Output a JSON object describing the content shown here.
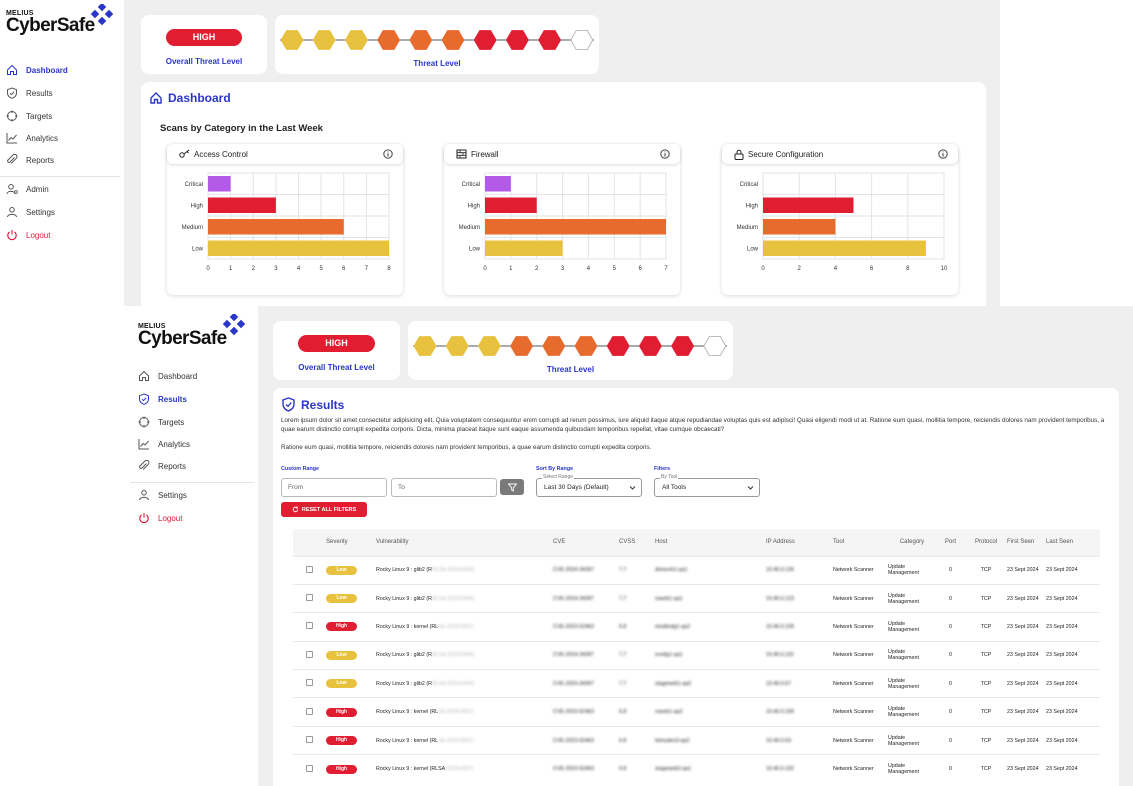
{
  "brand": {
    "top": "MELIUS",
    "name": "CyberSafe"
  },
  "screen1": {
    "nav": [
      {
        "label": "Dashboard",
        "icon": "home-icon",
        "active": true
      },
      {
        "label": "Results",
        "icon": "shield-icon"
      },
      {
        "label": "Targets",
        "icon": "target-icon"
      },
      {
        "label": "Analytics",
        "icon": "analytics-icon"
      },
      {
        "label": "Reports",
        "icon": "paperclip-icon"
      },
      {
        "label": "Admin",
        "icon": "admin-icon"
      },
      {
        "label": "Settings",
        "icon": "user-icon"
      },
      {
        "label": "Logout",
        "icon": "power-icon"
      }
    ],
    "threat": {
      "level": "HIGH",
      "caption": "Overall Threat Level"
    },
    "threat_meter": {
      "caption": "Threat Level",
      "colors": [
        "#e8c23f",
        "#e8c23f",
        "#e8c23f",
        "#e86b2e",
        "#e86b2e",
        "#e86b2e",
        "#e11d32",
        "#e11d32",
        "#e11d32",
        "#ffffff"
      ]
    },
    "panel_title": "Dashboard",
    "section_title": "Scans by Category in the Last Week",
    "category_colors": {
      "Critical": "#b45ae8",
      "High": "#e11d32",
      "Medium": "#e86b2e",
      "Low": "#e8c23f"
    },
    "chart_data": [
      {
        "type": "bar",
        "title": "Access Control",
        "icon": "key-icon",
        "categories": [
          "Critical",
          "High",
          "Medium",
          "Low"
        ],
        "values": [
          1,
          3,
          6,
          8
        ],
        "xlim": [
          0,
          8
        ],
        "xticks": [
          "0",
          "1",
          "2",
          "3",
          "4",
          "5",
          "6",
          "7",
          "8"
        ]
      },
      {
        "type": "bar",
        "title": "Firewall",
        "icon": "firewall-icon",
        "categories": [
          "Critical",
          "High",
          "Medium",
          "Low"
        ],
        "values": [
          1,
          2,
          7,
          3
        ],
        "xlim": [
          0,
          7
        ],
        "xticks": [
          "0",
          "1",
          "2",
          "3",
          "4",
          "5",
          "6",
          "7"
        ]
      },
      {
        "type": "bar",
        "title": "Secure Configuration",
        "icon": "lock-icon",
        "categories": [
          "Critical",
          "High",
          "Medium",
          "Low"
        ],
        "values": [
          0,
          5,
          4,
          9
        ],
        "xlim": [
          0,
          10
        ],
        "xticks": [
          "0",
          "2",
          "4",
          "6",
          "8",
          "10"
        ]
      }
    ]
  },
  "screen2": {
    "nav": [
      {
        "label": "Dashboard",
        "icon": "home-icon"
      },
      {
        "label": "Results",
        "icon": "shield-icon",
        "active": true
      },
      {
        "label": "Targets",
        "icon": "target-icon"
      },
      {
        "label": "Analytics",
        "icon": "analytics-icon"
      },
      {
        "label": "Reports",
        "icon": "paperclip-icon"
      },
      {
        "label": "Settings",
        "icon": "user-icon"
      },
      {
        "label": "Logout",
        "icon": "power-icon"
      }
    ],
    "threat": {
      "level": "HIGH",
      "caption": "Overall Threat Level"
    },
    "threat_meter": {
      "caption": "Threat Level"
    },
    "panel_title": "Results",
    "lorem1": "Lorem ipsum dolor sit amet consectetur adipisicing elit. Quia voluptatem consequuntur enim corrupti ad rerum possimus, iure aliquid itaque atque repudiandae voluptas quis est adipisci! Quasi eligendi modi ut at. Ratione eum quasi, mollitia tempore, reiciendis dolores nam provident temporibus, a quae earum distinctio corrupti expedita corporis. Dicta, minima placeat itaque sunt eaque assumenda quibusdam temporibus repellat, vitae cumque obcaecati?",
    "lorem2": "Ratione eum quasi, mollitia tempore, reiciendis dolores nam provident temporibus, a quae earum distinctio corrupti expedita corporis.",
    "filters": {
      "custom_range_label": "Custom Range",
      "from_placeholder": "From",
      "to_placeholder": "To",
      "sort_label": "Sort By Range",
      "sort_legend": "Select Range",
      "sort_value": "Last 30 Days (Default)",
      "filters_label": "Filters",
      "tool_legend": "By Tool",
      "tool_value": "All Tools",
      "reset_label": "RESET ALL FILTERS"
    },
    "table": {
      "headers": [
        "",
        "Severity",
        "Vulnerability",
        "CVE",
        "CVSS",
        "Host",
        "IP Address",
        "Tool",
        "Category",
        "Port",
        "Protocol",
        "First Seen",
        "Last Seen"
      ],
      "rows": [
        {
          "severity": "Low",
          "vuln": "Rocky Linux 9 : glib2 (R",
          "vuln_hidden": "RLSA-2024:6464)",
          "cve": "CVE-2024-34397",
          "cvss": "7.7",
          "host": "dmoovh1-qa1",
          "ip": "10.40.0.126",
          "tool": "Network Scanner",
          "category": "Update Management",
          "port": "0",
          "protocol": "TCP",
          "first": "23 Sept 2024",
          "last": "23 Sept 2024"
        },
        {
          "severity": "Low",
          "vuln": "Rocky Linux 9 : glib2 (R",
          "vuln_hidden": "RLSA-2024:6464)",
          "cve": "CVE-2024-34397",
          "cvss": "7.7",
          "host": "rsweb1-qa1",
          "ip": "10.40.0.123",
          "tool": "Network Scanner",
          "category": "Update Management",
          "port": "0",
          "protocol": "TCP",
          "first": "23 Sept 2024",
          "last": "23 Sept 2024"
        },
        {
          "severity": "High",
          "vuln": "Rocky Linux 9 : kernel (RL",
          "vuln_hidden": "SA-2024:6567)",
          "cve": "CVE-2023-52463",
          "cvss": "6.8",
          "host": "mediindg1-qa2",
          "ip": "10.40.0.109",
          "tool": "Network Scanner",
          "category": "Update Management",
          "port": "0",
          "protocol": "TCP",
          "first": "23 Sept 2024",
          "last": "23 Sept 2024"
        },
        {
          "severity": "Low",
          "vuln": "Rocky Linux 9 : glib2 (R",
          "vuln_hidden": "RLSA-2024:6464)",
          "cve": "CVE-2024-34397",
          "cvss": "7.7",
          "host": "srvidg1-qa1",
          "ip": "10.40.0.115",
          "tool": "Network Scanner",
          "category": "Update Management",
          "port": "0",
          "protocol": "TCP",
          "first": "23 Sept 2024",
          "last": "23 Sept 2024"
        },
        {
          "severity": "Low",
          "vuln": "Rocky Linux 9 : glib2 (R",
          "vuln_hidden": "RLSA-2024:6464)",
          "cve": "CVE-2024-34397",
          "cvss": "7.7",
          "host": "stageweb1-qa2",
          "ip": "10.40.0.67",
          "tool": "Network Scanner",
          "category": "Update Management",
          "port": "0",
          "protocol": "TCP",
          "first": "23 Sept 2024",
          "last": "23 Sept 2024"
        },
        {
          "severity": "High",
          "vuln": "Rocky Linux 9 : kernel (RL",
          "vuln_hidden": "SA-2024:6567)",
          "cve": "CVE-2023-52463",
          "cvss": "6.8",
          "host": "rsweb1-qa2",
          "ip": "10.40.0.100",
          "tool": "Network Scanner",
          "category": "Update Management",
          "port": "0",
          "protocol": "TCP",
          "first": "23 Sept 2024",
          "last": "23 Sept 2024"
        },
        {
          "severity": "High",
          "vuln": "Rocky Linux 9 : kernel (RL",
          "vuln_hidden": "SA-2024:6567)",
          "cve": "CVE-2023-52463",
          "cvss": "6.8",
          "host": "telesales3-qa2",
          "ip": "10.40.0.63",
          "tool": "Network Scanner",
          "category": "Update Management",
          "port": "0",
          "protocol": "TCP",
          "first": "23 Sept 2024",
          "last": "23 Sept 2024"
        },
        {
          "severity": "High",
          "vuln": "Rocky Linux 9 : kernel (RLSA",
          "vuln_hidden": "-2024:6567)",
          "cve": "CVE-2023-52463",
          "cvss": "6.8",
          "host": "stageweb2-qa1",
          "ip": "10.40.0.102",
          "tool": "Network Scanner",
          "category": "Update Management",
          "port": "0",
          "protocol": "TCP",
          "first": "23 Sept 2024",
          "last": "23 Sept 2024"
        }
      ]
    }
  }
}
